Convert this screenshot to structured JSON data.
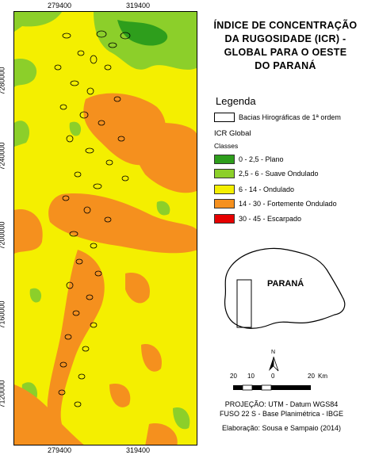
{
  "map": {
    "title_lines": [
      "ÍNDICE DE CONCENTRAÇÃO",
      "DA RUGOSIDADE (ICR) -",
      "GLOBAL PARA O OESTE",
      "DO PARANÁ"
    ],
    "x_ticks": [
      "279400",
      "319400"
    ],
    "y_ticks": [
      "7280000",
      "7240000",
      "7200000",
      "7160000",
      "7120000"
    ]
  },
  "legend": {
    "title": "Legenda",
    "basin_label": "Bacias Hirográficas de 1ª ordem",
    "icr_label": "ICR Global",
    "classes_label": "Classes",
    "classes": [
      {
        "label": "0 - 2,5 - Plano",
        "color": "#2e9e1c"
      },
      {
        "label": "2,5 - 6 - Suave Ondulado",
        "color": "#8ccf2a"
      },
      {
        "label": "6 - 14 - Ondulado",
        "color": "#f4ef00"
      },
      {
        "label": "14 - 30 - Fortemente Ondulado",
        "color": "#f5901e"
      },
      {
        "label": "30 - 45 - Escarpado",
        "color": "#e60000"
      }
    ]
  },
  "inset": {
    "label": "PARANÁ"
  },
  "north": {
    "label": "N"
  },
  "scale": {
    "labels": [
      "20",
      "10",
      "0",
      "20"
    ],
    "unit": "Km"
  },
  "credits": {
    "projection": "PROJEÇÃO: UTM - Datum WGS84",
    "zone": "FUSO 22 S - Base Planimétrica - IBGE",
    "author": "Elaboração: Sousa e Sampaio (2014)"
  }
}
